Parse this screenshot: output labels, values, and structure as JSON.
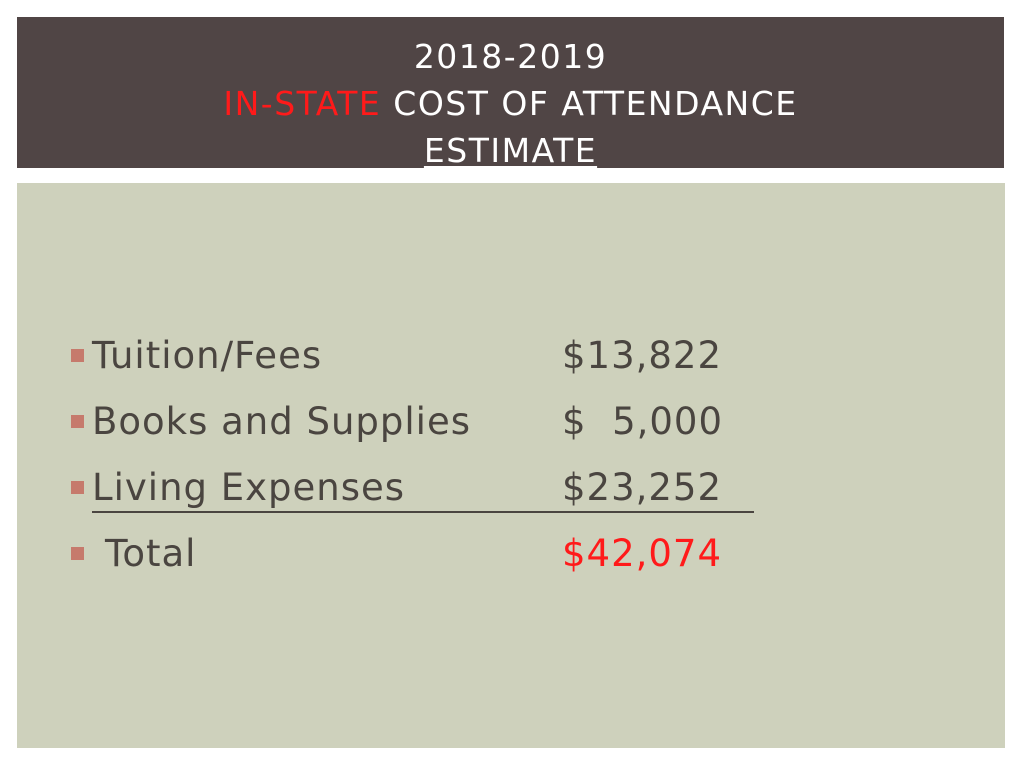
{
  "title": {
    "line1": "2018-2019",
    "line2_accent": "IN-STATE",
    "line2_rest": " COST OF ATTENDANCE",
    "line3": "ESTIMATE"
  },
  "items": [
    {
      "label": "Tuition/Fees",
      "value": "$13,822"
    },
    {
      "label": "Books and Supplies",
      "value": "$  5,000"
    },
    {
      "label": "Living Expenses",
      "value": "$23,252"
    }
  ],
  "total": {
    "label": "Total",
    "value": "$42,074"
  },
  "colors": {
    "title_background": "#504545",
    "content_background": "#ced1bc",
    "accent": "#ff1a1a",
    "bullet": "#c67a6c",
    "body_text": "#4a4540"
  }
}
